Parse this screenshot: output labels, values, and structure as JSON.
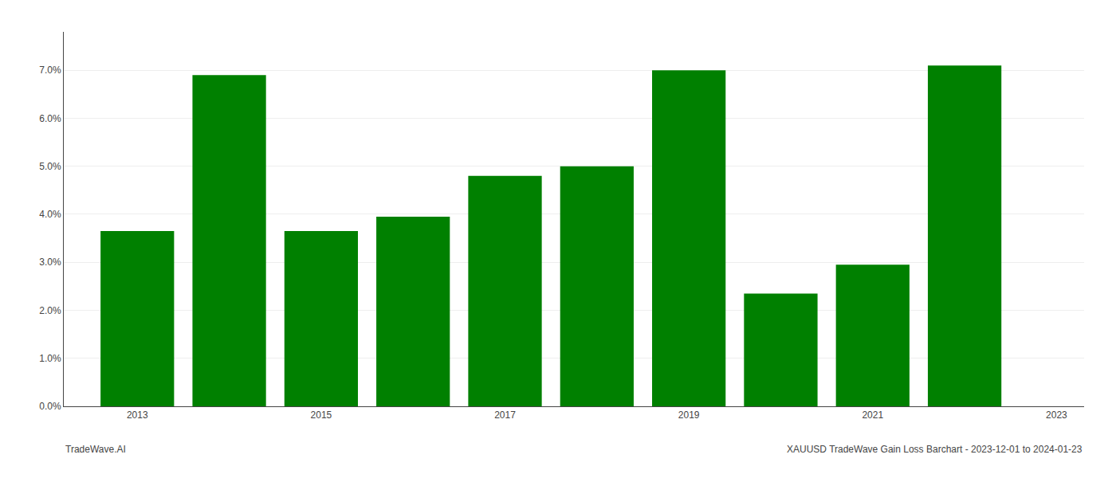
{
  "chart_data": {
    "type": "bar",
    "x": [
      2013,
      2014,
      2015,
      2016,
      2017,
      2018,
      2019,
      2020,
      2021,
      2022
    ],
    "values": [
      0.0365,
      0.069,
      0.0365,
      0.0395,
      0.048,
      0.05,
      0.07,
      0.0235,
      0.0295,
      0.071
    ],
    "color": "#008000",
    "xlim": [
      2012.2,
      2023.3
    ],
    "xticks": [
      2013,
      2015,
      2017,
      2019,
      2021,
      2023
    ],
    "ylim": [
      0,
      0.078
    ],
    "yticks": [
      {
        "value": 0.0,
        "label": "0.0%"
      },
      {
        "value": 0.01,
        "label": "1.0%"
      },
      {
        "value": 0.02,
        "label": "2.0%"
      },
      {
        "value": 0.03,
        "label": "3.0%"
      },
      {
        "value": 0.04,
        "label": "4.0%"
      },
      {
        "value": 0.05,
        "label": "5.0%"
      },
      {
        "value": 0.06,
        "label": "6.0%"
      },
      {
        "value": 0.07,
        "label": "7.0%"
      }
    ],
    "grid": true,
    "annotations": [
      "TradeWave.AI",
      "XAUUSD TradeWave Gain Loss Barchart - 2023-12-01 to 2024-01-23"
    ]
  }
}
